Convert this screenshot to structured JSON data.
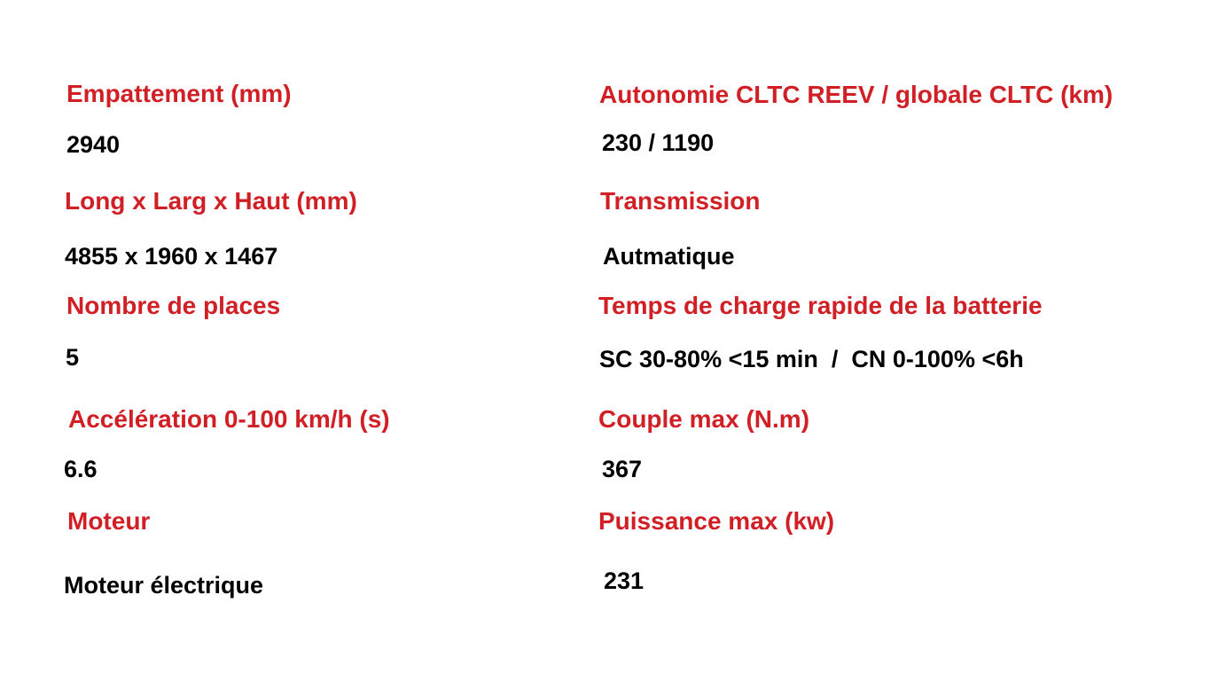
{
  "colors": {
    "label": "#d11f26",
    "value": "#000000",
    "background": "#ffffff"
  },
  "left": [
    {
      "label": "Empattement (mm)",
      "value": "2940"
    },
    {
      "label": "Long x Larg x Haut (mm)",
      "value": "4855 x 1960 x 1467"
    },
    {
      "label": "Nombre de places",
      "value": "5"
    },
    {
      "label": "Accélération 0-100 km/h (s)",
      "value": "6.6"
    },
    {
      "label": "Moteur",
      "value": "Moteur électrique"
    }
  ],
  "right": [
    {
      "label": "Autonomie CLTC REEV / globale CLTC (km)",
      "value": "230 / 1190"
    },
    {
      "label": "Transmission",
      "value": "Autmatique"
    },
    {
      "label": "Temps de charge rapide de la batterie",
      "value": "SC 30-80% <15 min  /  CN 0-100% <6h"
    },
    {
      "label": "Couple max (N.m)",
      "value": "367"
    },
    {
      "label": "Puissance max (kw)",
      "value": "231"
    }
  ]
}
